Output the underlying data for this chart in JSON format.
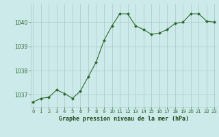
{
  "x": [
    0,
    1,
    2,
    3,
    4,
    5,
    6,
    7,
    8,
    9,
    10,
    11,
    12,
    13,
    14,
    15,
    16,
    17,
    18,
    19,
    20,
    21,
    22,
    23
  ],
  "y": [
    1036.7,
    1036.85,
    1036.9,
    1037.2,
    1037.05,
    1036.85,
    1037.15,
    1037.75,
    1038.35,
    1039.25,
    1039.85,
    1040.35,
    1040.35,
    1039.85,
    1039.7,
    1039.5,
    1039.55,
    1039.7,
    1039.95,
    1040.0,
    1040.35,
    1040.35,
    1040.05,
    1040.0
  ],
  "line_color": "#2d6a2d",
  "marker": "D",
  "marker_size": 2.0,
  "bg_color": "#cdeaea",
  "grid_color": "#b0cccc",
  "xlabel": "Graphe pression niveau de la mer (hPa)",
  "xlabel_color": "#1a4a1a",
  "tick_color": "#2d6a2d",
  "ylim": [
    1036.5,
    1040.75
  ],
  "yticks": [
    1037,
    1038,
    1039,
    1040
  ],
  "xticks": [
    0,
    1,
    2,
    3,
    4,
    5,
    6,
    7,
    8,
    9,
    10,
    11,
    12,
    13,
    14,
    15,
    16,
    17,
    18,
    19,
    20,
    21,
    22,
    23
  ],
  "xlim": [
    -0.3,
    23.3
  ]
}
